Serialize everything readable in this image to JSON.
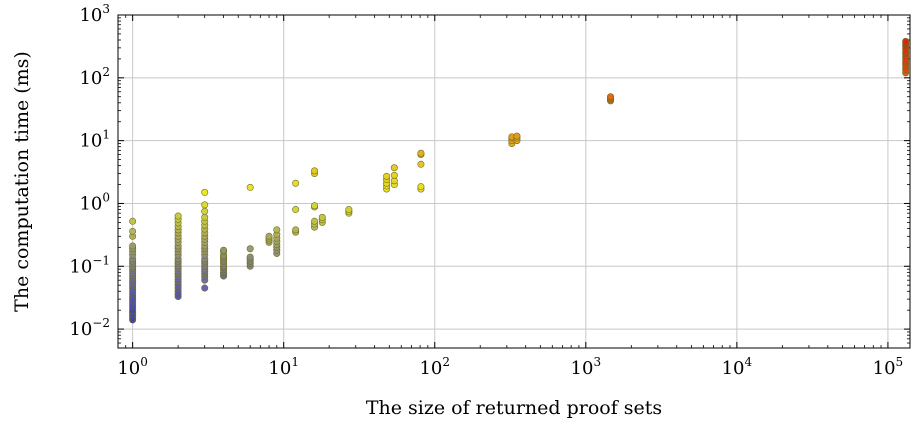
{
  "chart_data": {
    "type": "scatter",
    "xlabel": "The size of returned proof sets",
    "ylabel": "The computation time (ms)",
    "x_scale": "log",
    "y_scale": "log",
    "xlim": [
      0.8,
      140000
    ],
    "ylim": [
      0.005,
      1000
    ],
    "grid": true,
    "x_ticks": [
      {
        "value": 1,
        "base": "10",
        "exp": "0"
      },
      {
        "value": 10,
        "base": "10",
        "exp": "1"
      },
      {
        "value": 100,
        "base": "10",
        "exp": "2"
      },
      {
        "value": 1000,
        "base": "10",
        "exp": "3"
      },
      {
        "value": 10000,
        "base": "10",
        "exp": "4"
      },
      {
        "value": 100000,
        "base": "10",
        "exp": "5"
      }
    ],
    "y_ticks": [
      {
        "value": 0.01,
        "base": "10",
        "exp": "−2"
      },
      {
        "value": 0.1,
        "base": "10",
        "exp": "−1"
      },
      {
        "value": 1,
        "base": "10",
        "exp": "0"
      },
      {
        "value": 10,
        "base": "10",
        "exp": "1"
      },
      {
        "value": 100,
        "base": "10",
        "exp": "2"
      },
      {
        "value": 1000,
        "base": "10",
        "exp": "3"
      }
    ],
    "color_map": {
      "low": "#2b2bd9",
      "mid": "#e8e820",
      "high": "#e02010",
      "outline": "#707020"
    },
    "series": [
      {
        "points": [
          [
            1,
            0.014
          ],
          [
            1,
            0.015
          ],
          [
            1,
            0.016
          ],
          [
            1,
            0.017
          ],
          [
            1,
            0.018
          ],
          [
            1,
            0.019
          ],
          [
            1,
            0.02
          ],
          [
            1,
            0.022
          ],
          [
            1,
            0.024
          ],
          [
            1,
            0.026
          ],
          [
            1,
            0.028
          ],
          [
            1,
            0.03
          ],
          [
            1,
            0.033
          ],
          [
            1,
            0.036
          ],
          [
            1,
            0.04
          ],
          [
            1,
            0.044
          ],
          [
            1,
            0.048
          ],
          [
            1,
            0.053
          ],
          [
            1,
            0.058
          ],
          [
            1,
            0.064
          ],
          [
            1,
            0.07
          ],
          [
            1,
            0.077
          ],
          [
            1,
            0.085
          ],
          [
            1,
            0.093
          ],
          [
            1,
            0.1
          ],
          [
            1,
            0.11
          ],
          [
            1,
            0.12
          ],
          [
            1,
            0.13
          ],
          [
            1,
            0.15
          ],
          [
            1,
            0.17
          ],
          [
            1,
            0.19
          ],
          [
            1,
            0.21
          ],
          [
            1,
            0.3
          ],
          [
            1,
            0.36
          ],
          [
            1,
            0.52
          ],
          [
            2,
            0.033
          ],
          [
            2,
            0.036
          ],
          [
            2,
            0.04
          ],
          [
            2,
            0.045
          ],
          [
            2,
            0.05
          ],
          [
            2,
            0.056
          ],
          [
            2,
            0.062
          ],
          [
            2,
            0.068
          ],
          [
            2,
            0.075
          ],
          [
            2,
            0.083
          ],
          [
            2,
            0.092
          ],
          [
            2,
            0.1
          ],
          [
            2,
            0.11
          ],
          [
            2,
            0.12
          ],
          [
            2,
            0.13
          ],
          [
            2,
            0.15
          ],
          [
            2,
            0.17
          ],
          [
            2,
            0.19
          ],
          [
            2,
            0.21
          ],
          [
            2,
            0.24
          ],
          [
            2,
            0.27
          ],
          [
            2,
            0.3
          ],
          [
            2,
            0.34
          ],
          [
            2,
            0.38
          ],
          [
            2,
            0.43
          ],
          [
            2,
            0.49
          ],
          [
            2,
            0.56
          ],
          [
            2,
            0.63
          ],
          [
            3,
            0.045
          ],
          [
            3,
            0.06
          ],
          [
            3,
            0.068
          ],
          [
            3,
            0.075
          ],
          [
            3,
            0.083
          ],
          [
            3,
            0.09
          ],
          [
            3,
            0.1
          ],
          [
            3,
            0.11
          ],
          [
            3,
            0.12
          ],
          [
            3,
            0.13
          ],
          [
            3,
            0.15
          ],
          [
            3,
            0.17
          ],
          [
            3,
            0.19
          ],
          [
            3,
            0.21
          ],
          [
            3,
            0.24
          ],
          [
            3,
            0.27
          ],
          [
            3,
            0.3
          ],
          [
            3,
            0.34
          ],
          [
            3,
            0.39
          ],
          [
            3,
            0.45
          ],
          [
            3,
            0.52
          ],
          [
            3,
            0.6
          ],
          [
            3,
            0.75
          ],
          [
            3,
            0.95
          ],
          [
            3,
            1.5
          ],
          [
            4,
            0.07
          ],
          [
            4,
            0.075
          ],
          [
            4,
            0.08
          ],
          [
            4,
            0.088
          ],
          [
            4,
            0.095
          ],
          [
            4,
            0.1
          ],
          [
            4,
            0.11
          ],
          [
            4,
            0.12
          ],
          [
            4,
            0.13
          ],
          [
            4,
            0.14
          ],
          [
            4,
            0.15
          ],
          [
            4,
            0.17
          ],
          [
            4,
            0.18
          ],
          [
            6,
            0.1
          ],
          [
            6,
            0.11
          ],
          [
            6,
            0.12
          ],
          [
            6,
            0.13
          ],
          [
            6,
            0.14
          ],
          [
            6,
            0.19
          ],
          [
            6,
            1.8
          ],
          [
            8,
            0.24
          ],
          [
            8,
            0.26
          ],
          [
            8,
            0.28
          ],
          [
            8,
            0.3
          ],
          [
            9,
            0.16
          ],
          [
            9,
            0.18
          ],
          [
            9,
            0.2
          ],
          [
            9,
            0.22
          ],
          [
            9,
            0.25
          ],
          [
            9,
            0.28
          ],
          [
            9,
            0.32
          ],
          [
            9,
            0.38
          ],
          [
            12,
            0.35
          ],
          [
            12,
            0.38
          ],
          [
            12,
            0.8
          ],
          [
            12,
            2.1
          ],
          [
            16,
            0.42
          ],
          [
            16,
            0.47
          ],
          [
            16,
            0.52
          ],
          [
            16,
            0.88
          ],
          [
            16,
            0.92
          ],
          [
            16,
            3.0
          ],
          [
            16,
            3.3
          ],
          [
            18,
            0.5
          ],
          [
            18,
            0.55
          ],
          [
            18,
            0.6
          ],
          [
            27,
            0.7
          ],
          [
            27,
            0.75
          ],
          [
            27,
            0.8
          ],
          [
            48,
            1.7
          ],
          [
            48,
            1.9
          ],
          [
            48,
            2.1
          ],
          [
            48,
            2.4
          ],
          [
            48,
            2.7
          ],
          [
            54,
            2.0
          ],
          [
            54,
            2.3
          ],
          [
            54,
            2.8
          ],
          [
            54,
            3.7
          ],
          [
            81,
            1.7
          ],
          [
            81,
            1.85
          ],
          [
            81,
            4.2
          ],
          [
            81,
            6.0
          ],
          [
            81,
            6.3
          ],
          [
            324,
            9.0
          ],
          [
            324,
            10.0
          ],
          [
            324,
            11.0
          ],
          [
            324,
            11.5
          ],
          [
            350,
            10.0
          ],
          [
            350,
            11.0
          ],
          [
            350,
            11.8
          ],
          [
            1458,
            43
          ],
          [
            1458,
            45
          ],
          [
            1458,
            47
          ],
          [
            1458,
            49
          ],
          [
            1458,
            50
          ],
          [
            131072,
            120
          ],
          [
            131072,
            135
          ],
          [
            131072,
            150
          ],
          [
            131072,
            165
          ],
          [
            131072,
            180
          ],
          [
            131072,
            200
          ],
          [
            131072,
            220
          ],
          [
            131072,
            240
          ],
          [
            131072,
            260
          ],
          [
            131072,
            290
          ],
          [
            131072,
            320
          ],
          [
            131072,
            350
          ],
          [
            131072,
            380
          ]
        ]
      }
    ]
  }
}
